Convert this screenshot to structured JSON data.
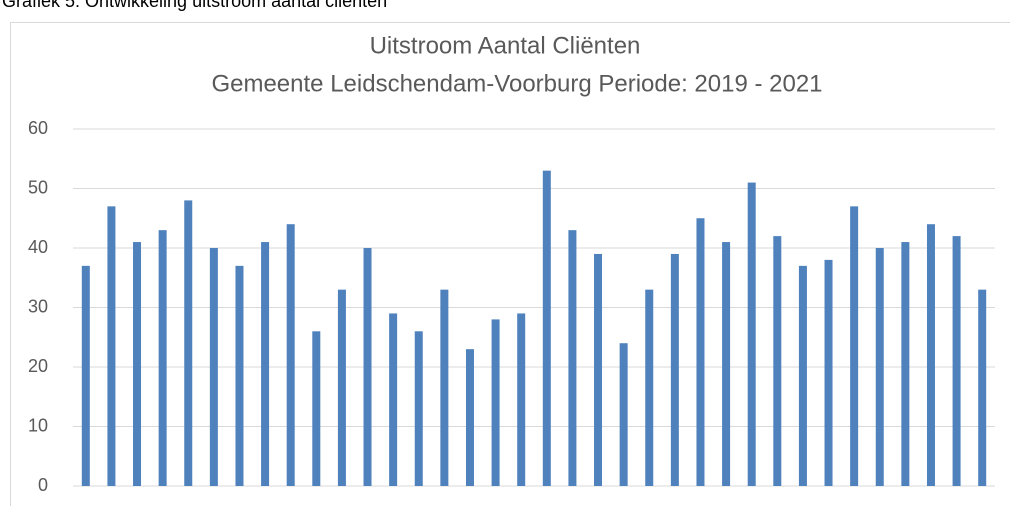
{
  "caption": "Grafiek 5: Ontwikkeling uitstroom aantal cliënten",
  "chart_data": {
    "type": "bar",
    "title": "Uitstroom Aantal Cliënten",
    "subtitle": "Gemeente Leidschendam-Voorburg Periode: 2019 - 2021",
    "categories": [
      null,
      null,
      null,
      null,
      null,
      null,
      null,
      null,
      null,
      null,
      null,
      null,
      null,
      null,
      null,
      null,
      null,
      null,
      null,
      null,
      null,
      null,
      null,
      null,
      null,
      null,
      null,
      null,
      null,
      null,
      null,
      null,
      null,
      null,
      null,
      null
    ],
    "values": [
      37,
      47,
      41,
      43,
      48,
      40,
      37,
      41,
      44,
      26,
      33,
      40,
      29,
      26,
      33,
      23,
      28,
      29,
      53,
      43,
      39,
      24,
      33,
      39,
      45,
      41,
      51,
      42,
      37,
      38,
      47,
      40,
      41,
      44,
      42,
      33
    ],
    "color": "#4f81bd",
    "ylim": [
      0,
      60
    ],
    "yticks": [
      0,
      10,
      20,
      30,
      40,
      50,
      60
    ],
    "grid": true
  }
}
